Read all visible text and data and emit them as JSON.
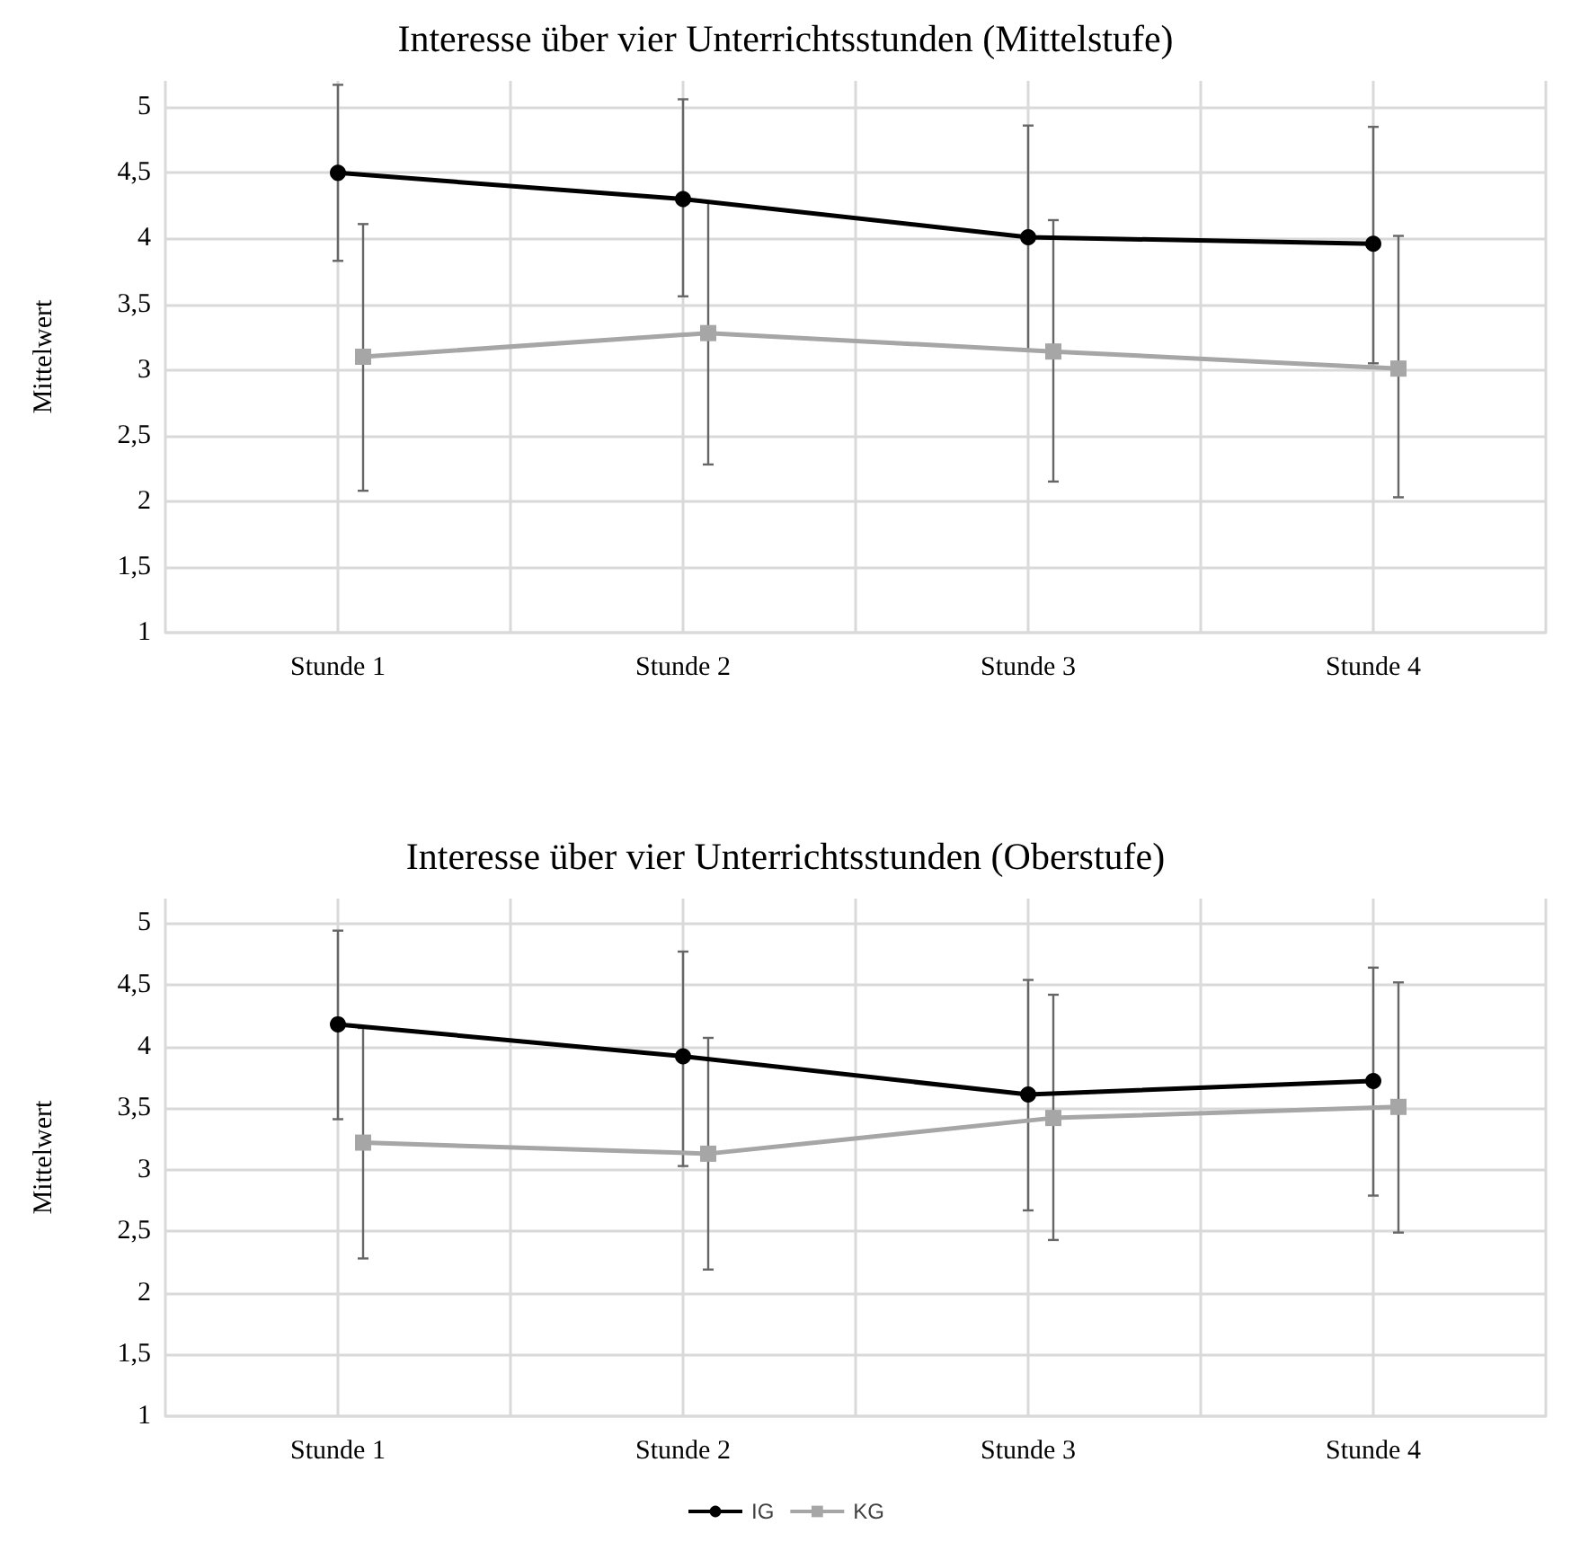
{
  "chart_data": [
    {
      "type": "line",
      "title": "Interesse über vier Unterrichtsstunden (Mittelstufe)",
      "ylabel": "Mittelwert",
      "categories": [
        "Stunde 1",
        "Stunde 2",
        "Stunde 3",
        "Stunde 4"
      ],
      "series": [
        {
          "color": "#000000",
          "marker": "circle",
          "values": [
            4.5,
            4.3,
            4.01,
            3.96
          ],
          "errors": [
            [
              3.83,
              5.17
            ],
            [
              3.56,
              5.06
            ],
            [
              3.15,
              4.86
            ],
            [
              3.05,
              4.85
            ]
          ]
        },
        {
          "color": "#a6a6a6",
          "marker": "square",
          "values": [
            3.1,
            3.28,
            3.14,
            3.01
          ],
          "errors": [
            [
              2.08,
              4.11
            ],
            [
              2.28,
              4.28
            ],
            [
              2.15,
              4.14
            ],
            [
              2.03,
              4.02
            ]
          ]
        }
      ],
      "ylim": [
        1,
        5.2
      ],
      "yticks": [
        1,
        {
          "value": 1.5,
          "label": "1,5"
        },
        2,
        {
          "value": 2.5,
          "label": "2,5"
        },
        3,
        {
          "value": 3.5,
          "label": "3,5"
        },
        4,
        {
          "value": 4.5,
          "label": "4,5"
        },
        5
      ],
      "grid": true,
      "legend": false
    },
    {
      "type": "line",
      "title": "Interesse über vier Unterrichtsstunden (Oberstufe)",
      "ylabel": "Mittelwert",
      "categories": [
        "Stunde 1",
        "Stunde 2",
        "Stunde 3",
        "Stunde 4"
      ],
      "series": [
        {
          "name": "IG",
          "color": "#000000",
          "marker": "circle",
          "values": [
            4.18,
            3.92,
            3.61,
            3.72
          ],
          "errors": [
            [
              3.41,
              4.94
            ],
            [
              3.03,
              4.77
            ],
            [
              2.67,
              4.54
            ],
            [
              2.79,
              4.64
            ]
          ]
        },
        {
          "name": "KG",
          "color": "#a6a6a6",
          "marker": "square",
          "values": [
            3.22,
            3.13,
            3.42,
            3.51
          ],
          "errors": [
            [
              2.28,
              4.15
            ],
            [
              2.19,
              4.07
            ],
            [
              2.43,
              4.42
            ],
            [
              2.49,
              4.52
            ]
          ]
        }
      ],
      "ylim": [
        1,
        5.2
      ],
      "yticks": [
        1,
        {
          "value": 1.5,
          "label": "1,5"
        },
        2,
        {
          "value": 2.5,
          "label": "2,5"
        },
        3,
        {
          "value": 3.5,
          "label": "3,5"
        },
        4,
        {
          "value": 4.5,
          "label": "4,5"
        },
        5
      ],
      "grid": true,
      "legend": "bottom"
    }
  ]
}
